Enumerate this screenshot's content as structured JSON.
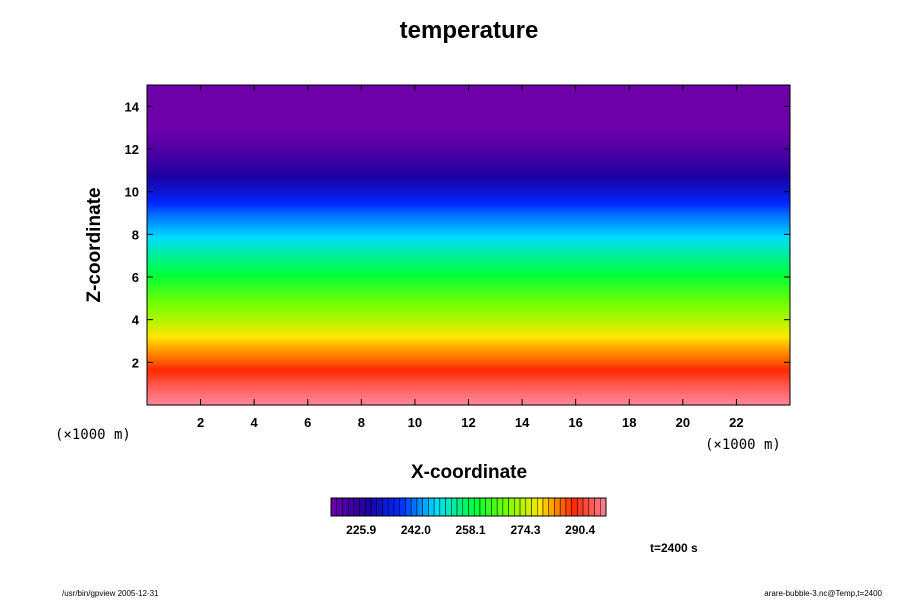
{
  "chart_data": {
    "type": "heatmap",
    "title": "temperature",
    "xlabel": "X-coordinate",
    "ylabel": "Z-coordinate",
    "x_unit": "(×1000 m)",
    "y_unit": "(×1000 m)",
    "xlim": [
      0,
      24
    ],
    "ylim": [
      0,
      15
    ],
    "x_ticks": [
      2,
      4,
      6,
      8,
      10,
      12,
      14,
      16,
      18,
      20,
      22
    ],
    "y_ticks": [
      2,
      4,
      6,
      8,
      10,
      12,
      14
    ],
    "profile": {
      "z": [
        0,
        1,
        2,
        3,
        4,
        5,
        6,
        7,
        8,
        9,
        10,
        11,
        12,
        13,
        14,
        15
      ],
      "temperature": [
        299,
        293,
        286,
        280,
        273,
        267,
        260,
        254,
        247,
        241,
        233,
        226,
        221,
        217,
        216,
        216
      ]
    },
    "colorbar": {
      "min": 217,
      "max": 298,
      "tick_labels": [
        "225.9",
        "242.0",
        "258.1",
        "274.3",
        "290.4"
      ],
      "tick_values": [
        225.9,
        242.0,
        258.1,
        274.3,
        290.4
      ]
    },
    "time_label": "t=2400 s"
  },
  "footer": {
    "left": "/usr/bin/gpview 2005-12-31",
    "right": "arare-bubble-3.nc@Temp,t=2400"
  }
}
